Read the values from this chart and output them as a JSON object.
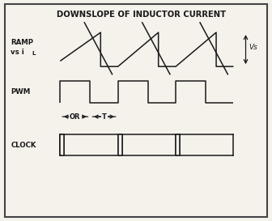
{
  "title": "DOWNSLOPE OF INDUCTOR CURRENT",
  "bg_color": "#f5f2ec",
  "line_color": "#1a1a1a",
  "ramp_label_line1": "RAMP",
  "ramp_label_line2": "vs i",
  "ramp_label_sub": "L",
  "pwm_label": "PWM",
  "clock_label": "CLOCK",
  "vs_label": "Vs",
  "or_label": "OR",
  "t_label": "T",
  "fig_width": 3.36,
  "fig_height": 2.73,
  "dpi": 100
}
